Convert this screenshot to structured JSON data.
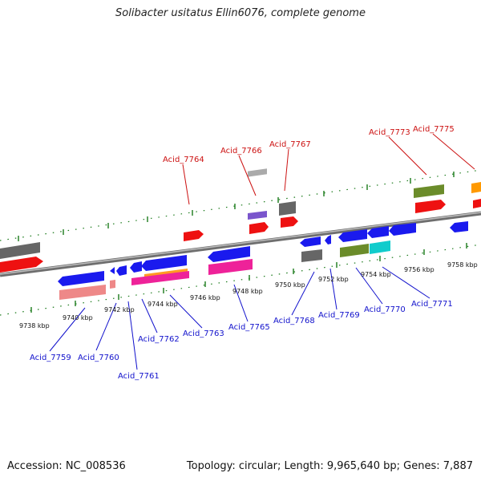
{
  "title": "Solibacter usitatus Ellin6076, complete genome",
  "footer": {
    "accession": "Accession: NC_008536",
    "topology": "Topology: circular; Length: 9,965,640 bp; Genes: 7,887"
  },
  "colors": {
    "top_label": "#cc1111",
    "bottom_label": "#1111cc",
    "ticks": "#1a7a1a",
    "backbone": "#808080"
  },
  "kbp_labels": [
    "9738 kbp",
    "9740 kbp",
    "9742 kbp",
    "9744 kbp",
    "9746 kbp",
    "9748 kbp",
    "9750 kbp",
    "9752 kbp",
    "9754 kbp",
    "9756 kbp",
    "9758 kbp"
  ],
  "top_genes": [
    "Acid_7764",
    "Acid_7766",
    "Acid_7767",
    "Acid_7773",
    "Acid_7775"
  ],
  "bottom_genes": [
    "Acid_7759",
    "Acid_7760",
    "Acid_7761",
    "Acid_7762",
    "Acid_7763",
    "Acid_7765",
    "Acid_7768",
    "Acid_7769",
    "Acid_7770",
    "Acid_7771"
  ]
}
